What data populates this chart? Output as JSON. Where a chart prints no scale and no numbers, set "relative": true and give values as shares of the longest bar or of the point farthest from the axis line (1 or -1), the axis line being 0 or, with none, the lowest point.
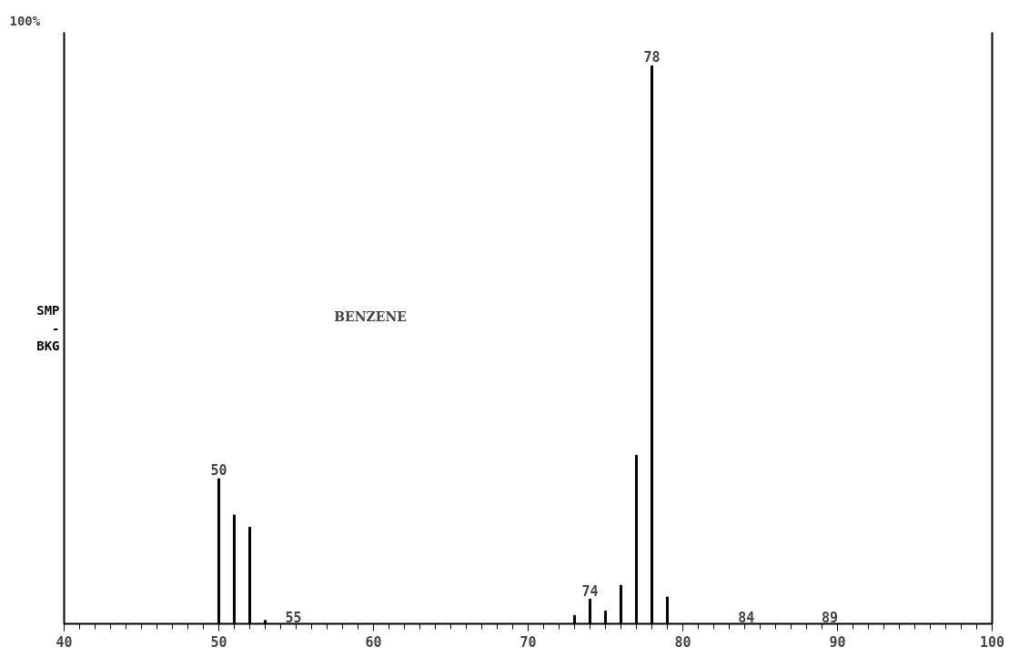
{
  "chart_data": {
    "type": "bar",
    "relative": true,
    "ylabel": "SMP\n-\nBKG",
    "x": [
      50,
      51,
      52,
      53,
      73,
      74,
      75,
      76,
      77,
      78,
      79
    ],
    "values": [
      0.26,
      0.195,
      0.173,
      0.006,
      0.015,
      0.044,
      0.023,
      0.069,
      0.302,
      1,
      0.048
    ],
    "color": "#000000",
    "xlim": [
      40,
      100
    ],
    "xticks": [
      40,
      50,
      60,
      70,
      80,
      90,
      100
    ],
    "annotations": [
      "100%",
      "BENZENE",
      {
        "text": "50",
        "x": 50,
        "y": 0.26
      },
      "55",
      {
        "text": "74",
        "x": 74,
        "y": 0.044
      },
      {
        "text": "78",
        "x": 78,
        "y": 1
      },
      "84",
      "89"
    ],
    "grid": false
  }
}
